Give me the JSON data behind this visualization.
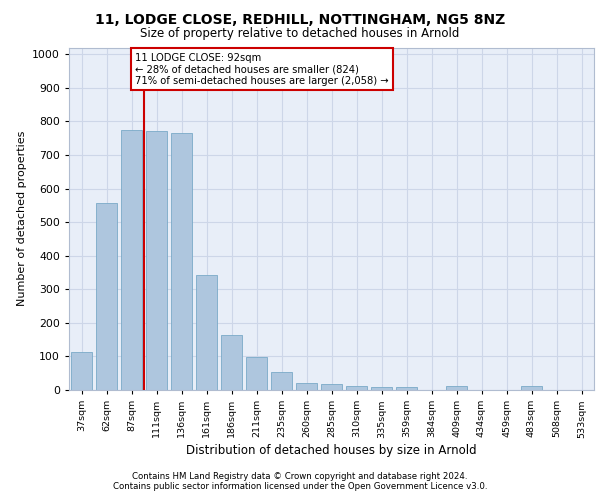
{
  "title1": "11, LODGE CLOSE, REDHILL, NOTTINGHAM, NG5 8NZ",
  "title2": "Size of property relative to detached houses in Arnold",
  "xlabel": "Distribution of detached houses by size in Arnold",
  "ylabel": "Number of detached properties",
  "categories": [
    "37sqm",
    "62sqm",
    "87sqm",
    "111sqm",
    "136sqm",
    "161sqm",
    "186sqm",
    "211sqm",
    "235sqm",
    "260sqm",
    "285sqm",
    "310sqm",
    "335sqm",
    "359sqm",
    "384sqm",
    "409sqm",
    "434sqm",
    "459sqm",
    "483sqm",
    "508sqm",
    "533sqm"
  ],
  "values": [
    113,
    557,
    775,
    770,
    765,
    343,
    163,
    98,
    55,
    20,
    18,
    12,
    10,
    10,
    0,
    12,
    0,
    0,
    12,
    0,
    0
  ],
  "bar_color": "#aec6de",
  "bar_edge_color": "#7aaac8",
  "vline_x_index": 2,
  "vline_color": "#cc0000",
  "annotation_text": "11 LODGE CLOSE: 92sqm\n← 28% of detached houses are smaller (824)\n71% of semi-detached houses are larger (2,058) →",
  "annotation_box_color": "#ffffff",
  "annotation_box_edge_color": "#cc0000",
  "grid_color": "#cdd6e8",
  "background_color": "#e8eef8",
  "footer1": "Contains HM Land Registry data © Crown copyright and database right 2024.",
  "footer2": "Contains public sector information licensed under the Open Government Licence v3.0.",
  "ylim": [
    0,
    1020
  ],
  "yticks": [
    0,
    100,
    200,
    300,
    400,
    500,
    600,
    700,
    800,
    900,
    1000
  ]
}
